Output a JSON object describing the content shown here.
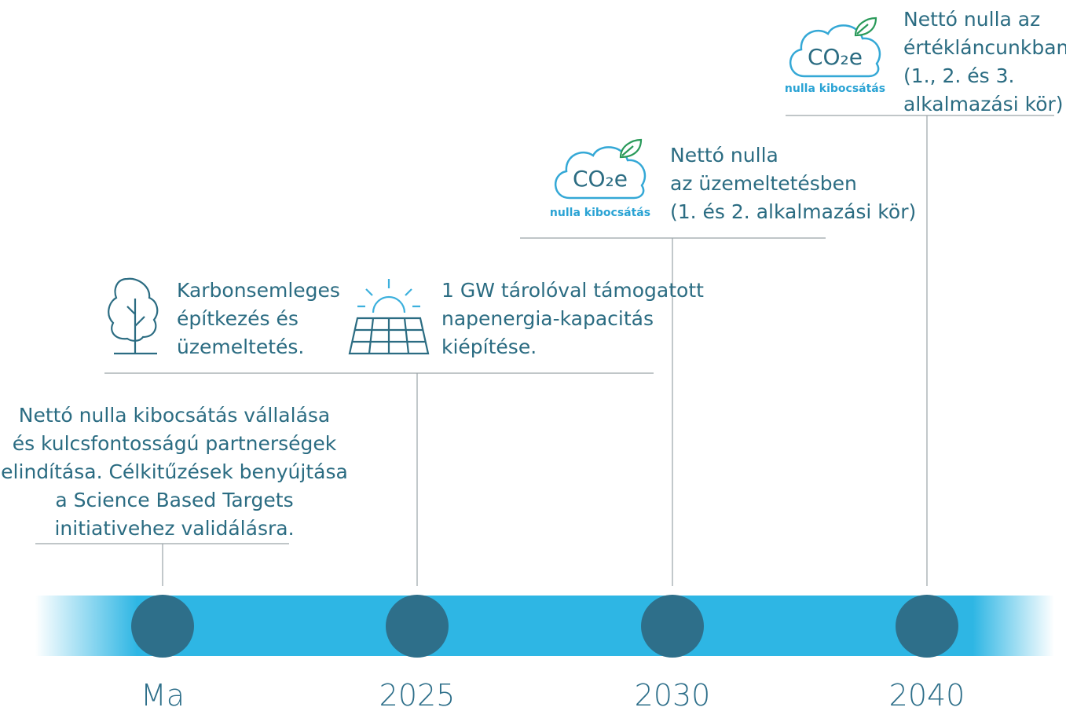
{
  "milestones": [
    {
      "label": "Ma",
      "text": [
        "Nettó nulla kibocsátás vállalása",
        "és kulcsfontosságú partnerségek",
        "elindítása. Célkitűzések benyújtása",
        "a Science Based Targets",
        "initiativehez validálásra."
      ]
    },
    {
      "label": "2025",
      "items": [
        {
          "text": [
            "Karbonsemleges",
            "építkezés és",
            "üzemeltetés."
          ]
        },
        {
          "text": [
            "1 GW tárolóval támogatott",
            "napenergia-kapacitás",
            "kiépítése."
          ]
        }
      ]
    },
    {
      "label": "2030",
      "icon": {
        "formula": "CO₂e",
        "caption": "nulla kibocsátás"
      },
      "text": [
        "Nettó nulla",
        "az üzemeltetésben",
        "(1. és 2. alkalmazási kör)"
      ]
    },
    {
      "label": "2040",
      "icon": {
        "formula": "CO₂e",
        "caption": "nulla kibocsátás"
      },
      "text": [
        "Nettó nulla az",
        "értékláncunkban",
        "(1., 2. és 3.",
        "alkalmazási kör)"
      ]
    }
  ]
}
